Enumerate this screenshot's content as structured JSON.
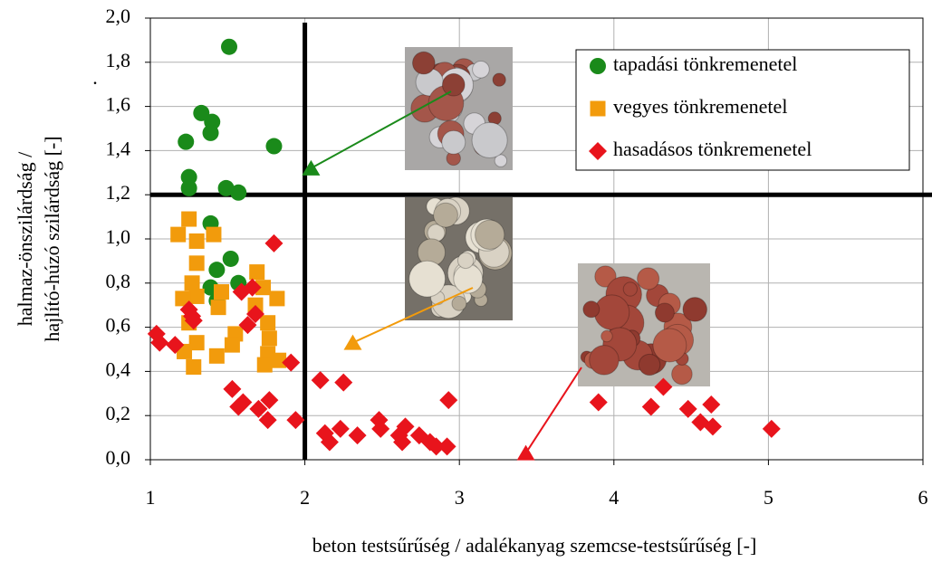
{
  "chart_data": {
    "type": "scatter",
    "xlabel": "beton testsűrűség / adalékanyag szemcse-testsűrűség [-]",
    "ylabel": [
      "halmaz-önszilárdság /",
      "hajlító-húzó szilárdság [-]"
    ],
    "note": ".",
    "xlim": [
      1,
      6
    ],
    "ylim": [
      0,
      2
    ],
    "xticks": [
      1,
      2,
      3,
      4,
      5,
      6
    ],
    "yticks": [
      {
        "value": 0,
        "label": "0,0"
      },
      {
        "value": 0.2,
        "label": "0,2"
      },
      {
        "value": 0.4,
        "label": "0,4"
      },
      {
        "value": 0.6,
        "label": "0,6"
      },
      {
        "value": 0.8,
        "label": "0,8"
      },
      {
        "value": 1.0,
        "label": "1,0"
      },
      {
        "value": 1.2,
        "label": "1,2"
      },
      {
        "value": 1.4,
        "label": "1,4"
      },
      {
        "value": 1.6,
        "label": "1,6"
      },
      {
        "value": 1.8,
        "label": "1,8"
      },
      {
        "value": 2.0,
        "label": "2,0"
      }
    ],
    "grid": true,
    "legend": "upper right",
    "reference_lines": [
      {
        "axis": "x",
        "value": 2
      },
      {
        "axis": "y",
        "value": 1.2
      }
    ],
    "markers": [
      {
        "x": 2.04,
        "y": 1.32,
        "color": "#1a8a1a"
      },
      {
        "x": 2.31,
        "y": 0.53,
        "color": "#f29b0c"
      },
      {
        "x": 3.43,
        "y": 0.03,
        "color": "#e8141c"
      }
    ],
    "series": [
      {
        "name": "tapadási tönkremenetel",
        "color": "#1a8a1a",
        "marker": "circle",
        "x": [
          1.51,
          1.33,
          1.4,
          1.39,
          1.23,
          1.8,
          1.25,
          1.25,
          1.57,
          1.49,
          1.39,
          1.43,
          1.52,
          1.39,
          1.57,
          1.43
        ],
        "y": [
          1.87,
          1.57,
          1.53,
          1.48,
          1.44,
          1.42,
          1.28,
          1.23,
          1.21,
          1.23,
          1.07,
          0.86,
          0.91,
          0.78,
          0.8,
          0.72
        ]
      },
      {
        "name": "vegyes tönkremenetel",
        "color": "#f29b0c",
        "marker": "square",
        "x": [
          1.25,
          1.18,
          1.3,
          1.41,
          1.3,
          1.27,
          1.3,
          1.21,
          1.46,
          1.44,
          1.55,
          1.25,
          1.3,
          1.22,
          1.28,
          1.43,
          1.53,
          1.69,
          1.73,
          1.82,
          1.76,
          1.77,
          1.76,
          1.74,
          1.83,
          1.68
        ],
        "y": [
          1.09,
          1.02,
          0.99,
          1.02,
          0.89,
          0.8,
          0.74,
          0.73,
          0.76,
          0.69,
          0.57,
          0.62,
          0.53,
          0.49,
          0.42,
          0.47,
          0.52,
          0.85,
          0.78,
          0.73,
          0.62,
          0.55,
          0.48,
          0.43,
          0.45,
          0.7
        ]
      },
      {
        "name": "hasadásos tönkremenetel",
        "color": "#e8141c",
        "marker": "diamond",
        "x": [
          1.04,
          1.06,
          1.16,
          1.25,
          1.27,
          1.28,
          1.59,
          1.66,
          1.8,
          1.68,
          1.63,
          1.91,
          1.53,
          1.57,
          1.6,
          1.7,
          1.77,
          1.76,
          1.94,
          2.1,
          2.25,
          2.13,
          2.16,
          2.23,
          2.34,
          2.48,
          2.49,
          2.61,
          2.63,
          2.65,
          2.74,
          2.81,
          2.85,
          2.92,
          2.93,
          3.9,
          4.24,
          4.32,
          4.48,
          4.56,
          4.63,
          4.64,
          5.02
        ],
        "y": [
          0.57,
          0.53,
          0.52,
          0.68,
          0.65,
          0.63,
          0.76,
          0.78,
          0.98,
          0.66,
          0.61,
          0.44,
          0.32,
          0.24,
          0.26,
          0.23,
          0.27,
          0.18,
          0.18,
          0.36,
          0.35,
          0.12,
          0.08,
          0.14,
          0.11,
          0.18,
          0.14,
          0.11,
          0.08,
          0.15,
          0.11,
          0.08,
          0.06,
          0.06,
          0.27,
          0.26,
          0.24,
          0.33,
          0.23,
          0.17,
          0.25,
          0.15,
          0.14
        ]
      }
    ]
  }
}
